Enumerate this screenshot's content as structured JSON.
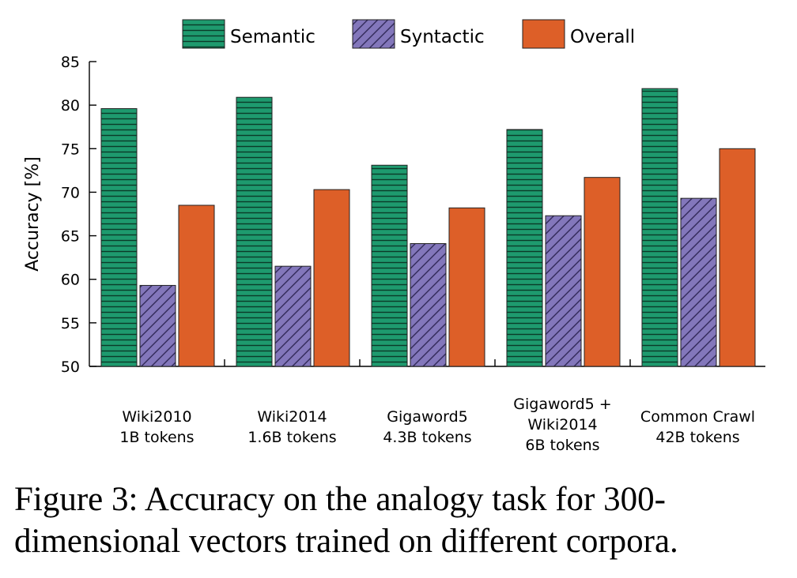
{
  "chart_data": {
    "type": "bar",
    "title": "",
    "ylabel": "Accuracy [%]",
    "xlabel": "",
    "ylim": [
      50,
      85
    ],
    "yticks": [
      50,
      55,
      60,
      65,
      70,
      75,
      80,
      85
    ],
    "categories": [
      [
        "Wiki2010",
        "1B tokens"
      ],
      [
        "Wiki2014",
        "1.6B tokens"
      ],
      [
        "Gigaword5",
        "4.3B tokens"
      ],
      [
        "Gigaword5 +",
        "Wiki2014",
        "6B tokens"
      ],
      [
        "Common Crawl",
        "42B tokens"
      ]
    ],
    "series": [
      {
        "name": "Semantic",
        "color": "#1e9a6e",
        "pattern": "horizontal-lines",
        "values": [
          79.6,
          80.9,
          73.1,
          77.2,
          81.9
        ]
      },
      {
        "name": "Syntactic",
        "color": "#8377bb",
        "pattern": "diagonal-lines",
        "values": [
          59.3,
          61.5,
          64.1,
          67.3,
          69.3
        ]
      },
      {
        "name": "Overall",
        "color": "#dd5f28",
        "pattern": "solid",
        "values": [
          68.5,
          70.3,
          68.2,
          71.7,
          75.0
        ]
      }
    ],
    "legend_position": "top",
    "grid": false
  },
  "caption": {
    "text": "Figure 3:  Accuracy on the analogy task for 300-\ndimensional vectors trained on different corpora."
  }
}
